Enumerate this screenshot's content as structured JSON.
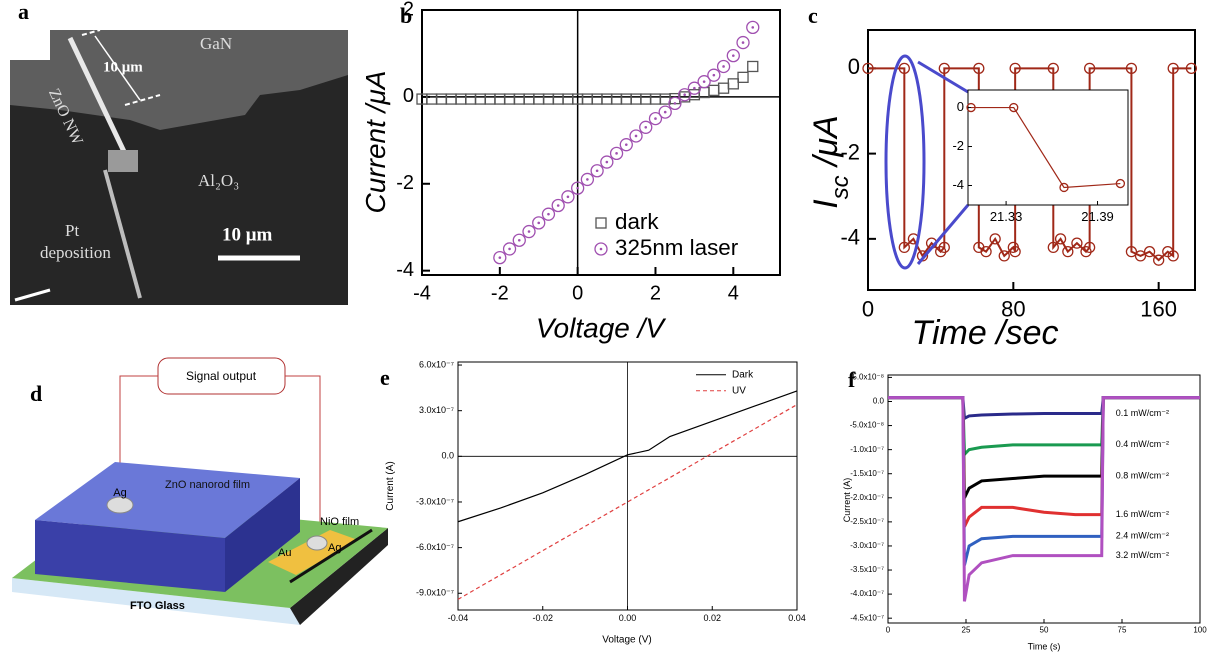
{
  "panel_a": {
    "label": "a",
    "substrate": "GaN",
    "wire": "ZnO NW",
    "wire_length": "10 μm",
    "layer": "Al₂O₃",
    "electrode": [
      "Pt",
      "deposition"
    ],
    "scale_bar": "10 μm"
  },
  "panel_d": {
    "label": "d",
    "signal": "Signal output",
    "electrode_left": "Ag",
    "film": "ZnO nanorod film",
    "nio": "NiO film",
    "au": "Au",
    "electrode_right": "Ag",
    "substrate": "FTO Glass"
  },
  "chart_data": [
    {
      "type": "scatter",
      "panel_label": "b",
      "xlabel": "Voltage  /V",
      "ylabel": [
        "Current /μA"
      ],
      "xlim": [
        -4,
        5.2
      ],
      "ylim": [
        -4.1,
        2
      ],
      "xticks": [
        -4,
        -2,
        0,
        2,
        4
      ],
      "yticks": [
        -4,
        -2,
        0,
        2
      ],
      "zero_lines": true,
      "legend": "lower right",
      "series": [
        {
          "name": "dark",
          "color": "#555555",
          "marker": "square",
          "x": [
            -4,
            -3.75,
            -3.5,
            -3.25,
            -3,
            -2.75,
            -2.5,
            -2.25,
            -2,
            -1.75,
            -1.5,
            -1.25,
            -1,
            -0.75,
            -0.5,
            -0.25,
            0,
            0.25,
            0.5,
            0.75,
            1,
            1.25,
            1.5,
            1.75,
            2,
            2.25,
            2.5,
            2.75,
            3,
            3.25,
            3.5,
            3.75,
            4,
            4.25,
            4.5
          ],
          "values": [
            -0.05,
            -0.05,
            -0.05,
            -0.05,
            -0.05,
            -0.05,
            -0.05,
            -0.05,
            -0.05,
            -0.05,
            -0.05,
            -0.05,
            -0.05,
            -0.05,
            -0.05,
            -0.05,
            -0.05,
            -0.05,
            -0.05,
            -0.05,
            -0.05,
            -0.05,
            -0.05,
            -0.05,
            -0.05,
            -0.05,
            -0.04,
            0,
            0.05,
            0.1,
            0.15,
            0.2,
            0.3,
            0.45,
            0.7
          ]
        },
        {
          "name": "325nm laser",
          "color": "#a050b0",
          "marker": "circle-dot",
          "x": [
            -2,
            -1.75,
            -1.5,
            -1.25,
            -1,
            -0.75,
            -0.5,
            -0.25,
            0,
            0.25,
            0.5,
            0.75,
            1,
            1.25,
            1.5,
            1.75,
            2,
            2.25,
            2.5,
            2.75,
            3,
            3.25,
            3.5,
            3.75,
            4,
            4.25,
            4.5
          ],
          "values": [
            -3.7,
            -3.5,
            -3.3,
            -3.1,
            -2.9,
            -2.7,
            -2.5,
            -2.3,
            -2.1,
            -1.9,
            -1.7,
            -1.5,
            -1.3,
            -1.1,
            -0.9,
            -0.7,
            -0.5,
            -0.35,
            -0.15,
            0.05,
            0.2,
            0.35,
            0.5,
            0.7,
            0.95,
            1.25,
            1.6
          ]
        }
      ]
    },
    {
      "type": "line",
      "panel_label": "c",
      "xlabel": "Time /sec",
      "ylabel": [
        "I",
        "sc",
        " /μA"
      ],
      "xlim": [
        0,
        180
      ],
      "ylim": [
        -5.2,
        0.9
      ],
      "xticks": [
        0,
        80,
        160
      ],
      "yticks": [
        0,
        -2,
        -4
      ],
      "x": [
        0,
        20,
        20,
        25,
        30,
        35,
        40,
        42,
        42,
        61,
        61,
        65,
        70,
        75,
        80,
        81,
        81,
        102,
        102,
        106,
        110,
        115,
        120,
        122,
        122,
        145,
        145,
        150,
        155,
        160,
        165,
        168,
        168,
        178
      ],
      "series": [
        {
          "color": "#a02818",
          "marker": "circle",
          "values": [
            0,
            0,
            -4.2,
            -4.0,
            -4.4,
            -4.1,
            -4.3,
            -4.2,
            0,
            0,
            -4.2,
            -4.3,
            -4.0,
            -4.4,
            -4.2,
            -4.3,
            0,
            0,
            -4.2,
            -4.0,
            -4.3,
            -4.1,
            -4.3,
            -4.2,
            0,
            0,
            -4.3,
            -4.4,
            -4.3,
            -4.5,
            -4.3,
            -4.4,
            0,
            0
          ]
        }
      ],
      "inset": {
        "xlim": [
          21.305,
          21.41
        ],
        "ylim": [
          -5,
          0.9
        ],
        "xticks": [
          21.33,
          21.39
        ],
        "yticks": [
          0,
          -2,
          -4
        ],
        "x": [
          21.307,
          21.335,
          21.368,
          21.405
        ],
        "series": [
          {
            "color": "#a02818",
            "marker": "circle",
            "values": [
              0,
              0,
              -4.1,
              -3.9
            ]
          }
        ]
      }
    },
    {
      "type": "line",
      "panel_label": "e",
      "xlabel": "Voltage (V)",
      "ylabel": [
        "Current (A)"
      ],
      "xlim": [
        -0.04,
        0.04
      ],
      "ylim": [
        -1.01e-06,
        6.2e-07
      ],
      "xticks": [
        -0.04,
        -0.02,
        {
          "value": 0,
          "label": "0.00"
        },
        0.02,
        0.04
      ],
      "yticks": [
        {
          "value": 6e-07,
          "label": "6.0x10⁻⁷"
        },
        {
          "value": 3e-07,
          "label": "3.0x10⁻⁷"
        },
        {
          "value": 0,
          "label": "0.0"
        },
        {
          "value": -3e-07,
          "label": "-3.0x10⁻⁷"
        },
        {
          "value": -6e-07,
          "label": "-6.0x10⁻⁷"
        },
        {
          "value": -9e-07,
          "label": "-9.0x10⁻⁷"
        }
      ],
      "zero_lines": true,
      "legend": "upper right",
      "x": [
        -0.04,
        -0.03,
        -0.02,
        -0.01,
        0,
        0.005,
        0.01,
        0.02,
        0.03,
        0.04
      ],
      "series": [
        {
          "name": "Dark",
          "color": "#000000",
          "values": [
            -4.3e-07,
            -3.4e-07,
            -2.4e-07,
            -1.2e-07,
            1e-08,
            4e-08,
            1.3e-07,
            2.3e-07,
            3.3e-07,
            4.3e-07
          ]
        },
        {
          "name": "UV",
          "color": "#e04040",
          "dash": true,
          "values": [
            -9.4e-07,
            -7.8e-07,
            -6.2e-07,
            -4.6e-07,
            -3e-07,
            -2.2e-07,
            -1.4e-07,
            2e-08,
            1.8e-07,
            3.4e-07
          ]
        }
      ]
    },
    {
      "type": "line",
      "panel_label": "f",
      "xlabel": "Time (s)",
      "ylabel": [
        "Current (A)"
      ],
      "xlim": [
        0,
        100
      ],
      "ylim": [
        -4.6e-07,
        5.5e-08
      ],
      "xticks": [
        0,
        25,
        50,
        75,
        100
      ],
      "yticks": [
        {
          "value": 5e-08,
          "label": "5.0x10⁻⁸"
        },
        {
          "value": 0,
          "label": "0.0"
        },
        {
          "value": -5e-08,
          "label": "-5.0x10⁻⁸"
        },
        {
          "value": -1e-07,
          "label": "-1.0x10⁻⁷"
        },
        {
          "value": -1.5e-07,
          "label": "-1.5x10⁻⁷"
        },
        {
          "value": -2e-07,
          "label": "-2.0x10⁻⁷"
        },
        {
          "value": -2.5e-07,
          "label": "-2.5x10⁻⁷"
        },
        {
          "value": -3e-07,
          "label": "-3.0x10⁻⁷"
        },
        {
          "value": -3.5e-07,
          "label": "-3.5x10⁻⁷"
        },
        {
          "value": -4e-07,
          "label": "-4.0x10⁻⁷"
        },
        {
          "value": -4.5e-07,
          "label": "-4.5x10⁻⁷"
        }
      ],
      "legend": "inline",
      "x": [
        0,
        24,
        24.5,
        26,
        30,
        40,
        50,
        60,
        68.5,
        69,
        100
      ],
      "series": [
        {
          "name": "0.1 mW/cm⁻²",
          "color": "#2a2a8a",
          "values": [
            8e-09,
            8e-09,
            -3.5e-08,
            -3e-08,
            -2.8e-08,
            -2.6e-08,
            -2.5e-08,
            -2.5e-08,
            -2.5e-08,
            8e-09,
            8e-09
          ]
        },
        {
          "name": "0.4 mW/cm⁻²",
          "color": "#1a9a50",
          "values": [
            8e-09,
            8e-09,
            -1.1e-07,
            -1e-07,
            -9.5e-08,
            -9e-08,
            -9e-08,
            -9e-08,
            -9e-08,
            8e-09,
            8e-09
          ]
        },
        {
          "name": "0.8 mW/cm⁻²",
          "color": "#000000",
          "values": [
            8e-09,
            8e-09,
            -2e-07,
            -1.8e-07,
            -1.65e-07,
            -1.6e-07,
            -1.55e-07,
            -1.55e-07,
            -1.55e-07,
            8e-09,
            8e-09
          ]
        },
        {
          "name": "1.6 mW/cm⁻²",
          "color": "#e03030",
          "values": [
            8e-09,
            8e-09,
            -2.6e-07,
            -2.4e-07,
            -2.2e-07,
            -2.2e-07,
            -2.3e-07,
            -2.35e-07,
            -2.35e-07,
            8e-09,
            8e-09
          ]
        },
        {
          "name": "2.4 mW/cm⁻²",
          "color": "#3060c0",
          "values": [
            8e-09,
            8e-09,
            -3.4e-07,
            -3e-07,
            -2.85e-07,
            -2.8e-07,
            -2.8e-07,
            -2.8e-07,
            -2.8e-07,
            8e-09,
            8e-09
          ]
        },
        {
          "name": "3.2 mW/cm⁻²",
          "color": "#b050c0",
          "values": [
            8e-09,
            8e-09,
            -4.15e-07,
            -3.6e-07,
            -3.35e-07,
            -3.2e-07,
            -3.2e-07,
            -3.2e-07,
            -3.2e-07,
            8e-09,
            8e-09
          ]
        }
      ]
    }
  ]
}
